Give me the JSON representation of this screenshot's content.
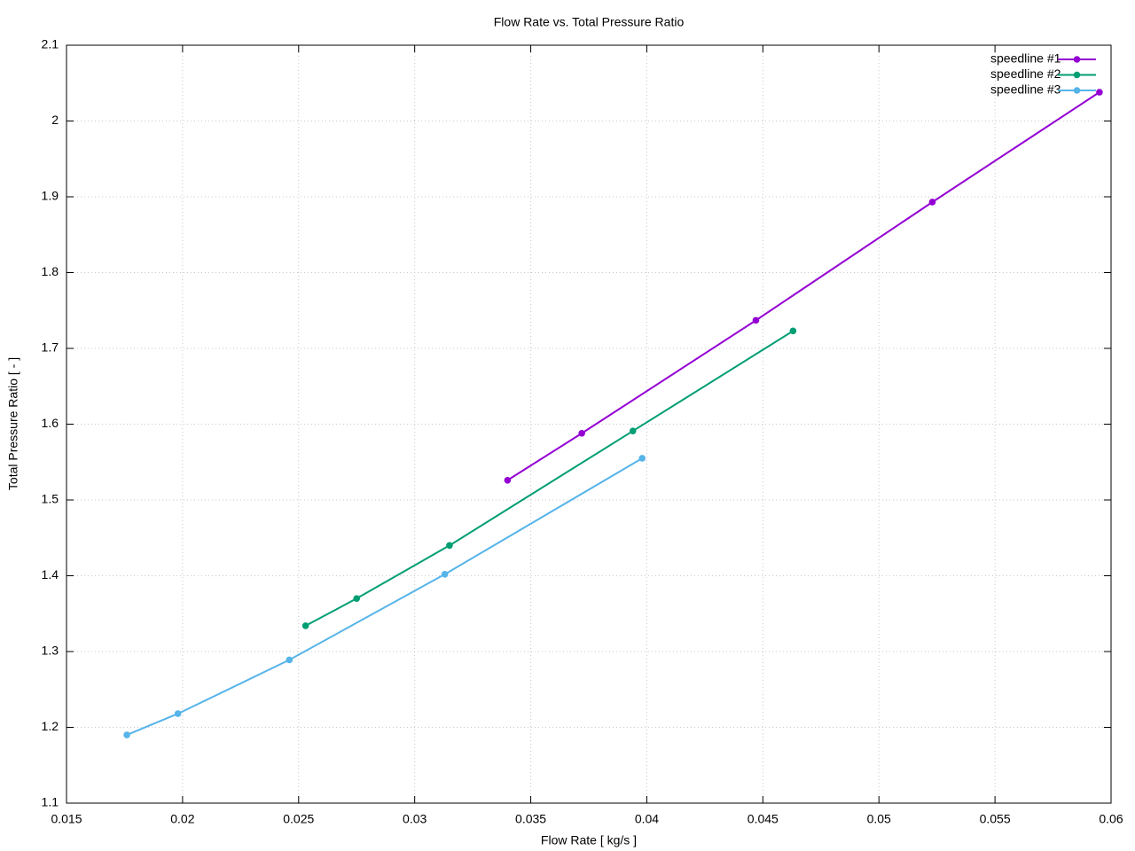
{
  "chart_data": {
    "type": "line",
    "title": "Flow Rate vs. Total Pressure Ratio",
    "x_label": "Flow Rate [ kg/s ]",
    "y_label": "Total Pressure Ratio [ - ]",
    "xlim": [
      0.015,
      0.06
    ],
    "ylim": [
      1.1,
      2.1
    ],
    "xticks": [
      0.015,
      0.02,
      0.025,
      0.03,
      0.035,
      0.04,
      0.045,
      0.05,
      0.055,
      0.06
    ],
    "yticks": [
      1.1,
      1.2,
      1.3,
      1.4,
      1.5,
      1.6,
      1.7,
      1.8,
      1.9,
      2,
      2.1
    ],
    "grid": true,
    "legend": "top-right",
    "series": [
      {
        "name": "speedline #1",
        "color": "#9400d3",
        "x": [
          0.034,
          0.0372,
          0.0447,
          0.0523,
          0.0595
        ],
        "values": [
          1.526,
          1.588,
          1.737,
          1.893,
          2.038
        ]
      },
      {
        "name": "speedline #2",
        "color": "#009e73",
        "x": [
          0.0253,
          0.0275,
          0.0315,
          0.0394,
          0.0463
        ],
        "values": [
          1.334,
          1.37,
          1.44,
          1.591,
          1.723
        ]
      },
      {
        "name": "speedline #3",
        "color": "#56b4e9",
        "x": [
          0.0176,
          0.0198,
          0.0246,
          0.0313,
          0.0398
        ],
        "values": [
          1.19,
          1.218,
          1.289,
          1.402,
          1.555
        ]
      }
    ]
  }
}
